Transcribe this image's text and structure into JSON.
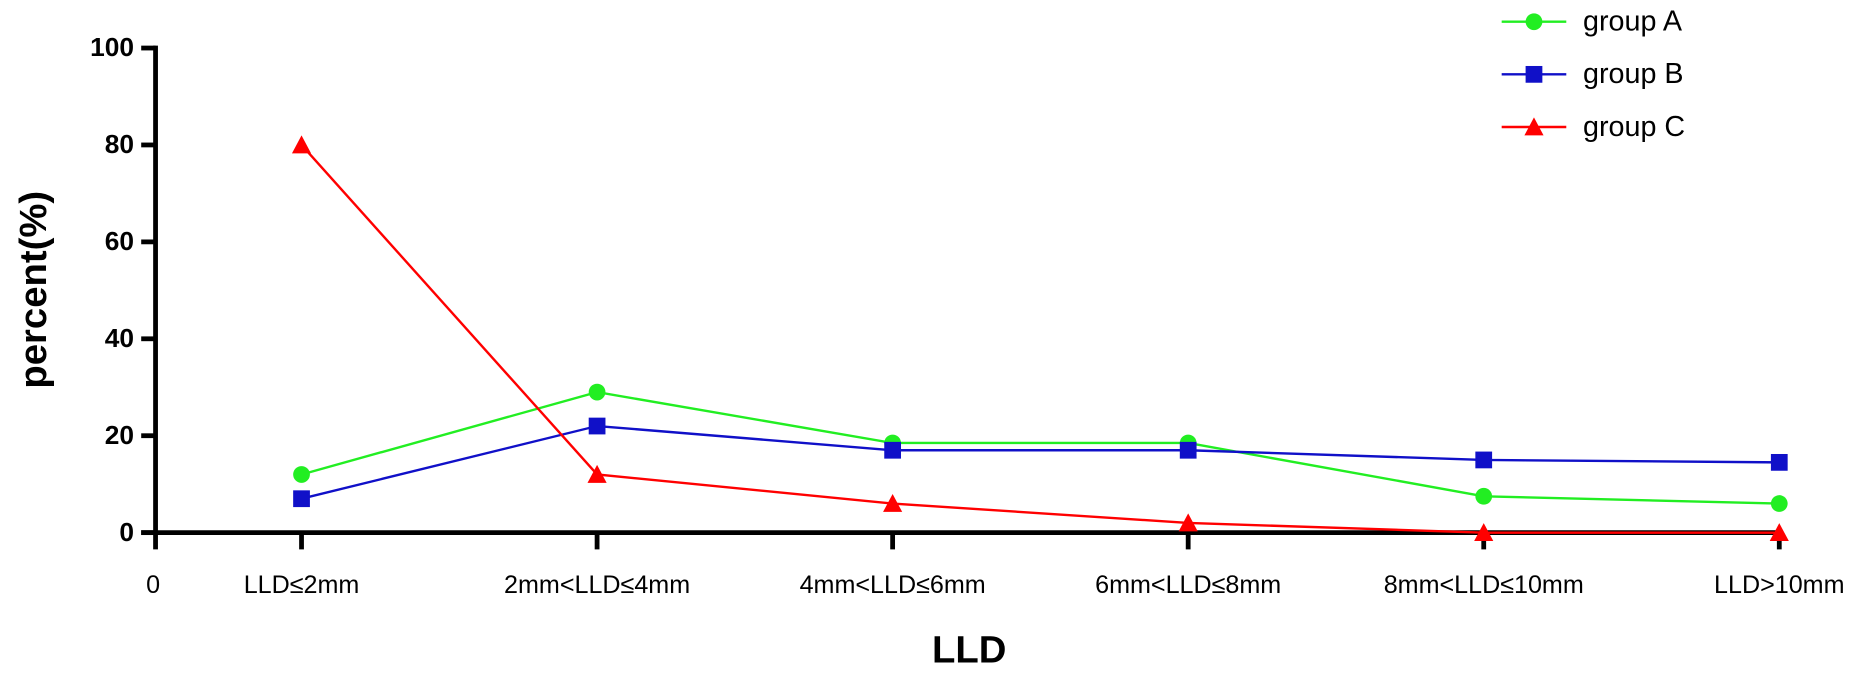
{
  "chart_data": {
    "type": "line",
    "x_label": "LLD",
    "y_label": "percent(%)",
    "x_origin_label": "0",
    "categories": [
      "LLD≤2mm",
      "2mm<LLD≤4mm",
      "4mm<LLD≤6mm",
      "6mm<LLD≤8mm",
      "8mm<LLD≤10mm",
      "LLD>10mm"
    ],
    "series": [
      {
        "name": "group A",
        "color": "#22ee22",
        "marker": "circle",
        "values": [
          12,
          29,
          18.5,
          18.5,
          7.5,
          6
        ]
      },
      {
        "name": "group B",
        "color": "#1010c8",
        "marker": "square",
        "values": [
          7,
          22,
          17,
          17,
          15,
          14.5
        ]
      },
      {
        "name": "group C",
        "color": "#ff0000",
        "marker": "triangle",
        "values": [
          80,
          12,
          6,
          2,
          0,
          0
        ]
      }
    ],
    "ylim": [
      0,
      100
    ],
    "yticks": [
      0,
      20,
      40,
      60,
      80,
      100
    ],
    "legend": "top-right"
  }
}
